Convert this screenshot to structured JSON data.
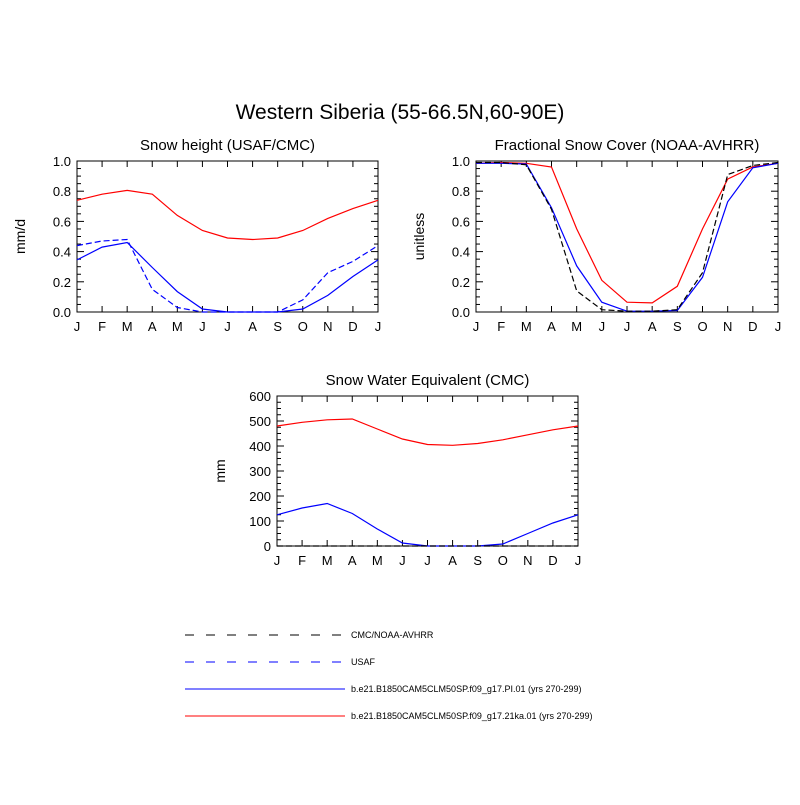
{
  "main_title": "Western Siberia (55-66.5N,60-90E)",
  "colors": {
    "blue": "#0000ff",
    "red": "#ff0000",
    "black": "#000000"
  },
  "legend": [
    {
      "label": "CMC/NOAA-AVHRR",
      "color": "#000000",
      "dash": true
    },
    {
      "label": "USAF",
      "color": "#0000ff",
      "dash": true
    },
    {
      "label": "b.e21.B1850CAM5CLM50SP.f09_g17.PI.01 (yrs 270-299)",
      "color": "#0000ff",
      "dash": false
    },
    {
      "label": "b.e21.B1850CAM5CLM50SP.f09_g17.21ka.01 (yrs 270-299)",
      "color": "#ff0000",
      "dash": false
    }
  ],
  "chart_data": [
    {
      "type": "line",
      "title": "Snow height (USAF/CMC)",
      "ylabel": "mm/d",
      "xlabel": "",
      "categories": [
        "J",
        "F",
        "M",
        "A",
        "M",
        "J",
        "J",
        "A",
        "S",
        "O",
        "N",
        "D",
        "J"
      ],
      "ylim": [
        0,
        1.0
      ],
      "yticks": [
        "0.0",
        "0.2",
        "0.4",
        "0.6",
        "0.8",
        "1.0"
      ],
      "series": [
        {
          "name": "b.e21.B1850CAM5CLM50SP.f09_g17.21ka.01 (yrs 270-299)",
          "color": "#ff0000",
          "dash": false,
          "values": [
            0.74,
            0.78,
            0.805,
            0.78,
            0.64,
            0.54,
            0.49,
            0.48,
            0.49,
            0.54,
            0.62,
            0.685,
            0.74
          ]
        },
        {
          "name": "b.e21.B1850CAM5CLM50SP.f09_g17.PI.01 (yrs 270-299)",
          "color": "#0000ff",
          "dash": false,
          "values": [
            0.345,
            0.43,
            0.46,
            0.295,
            0.135,
            0.02,
            0.0,
            0.0,
            0.0,
            0.02,
            0.11,
            0.235,
            0.345
          ]
        },
        {
          "name": "USAF",
          "color": "#0000ff",
          "dash": true,
          "values": [
            0.44,
            0.47,
            0.48,
            0.15,
            0.03,
            0.0,
            0.0,
            0.0,
            0.0,
            0.08,
            0.26,
            0.335,
            0.44
          ]
        }
      ]
    },
    {
      "type": "line",
      "title": "Fractional Snow Cover (NOAA-AVHRR)",
      "ylabel": "unitless",
      "xlabel": "",
      "categories": [
        "J",
        "F",
        "M",
        "A",
        "M",
        "J",
        "J",
        "A",
        "S",
        "O",
        "N",
        "D",
        "J"
      ],
      "ylim": [
        0,
        1.0
      ],
      "yticks": [
        "0.0",
        "0.2",
        "0.4",
        "0.6",
        "0.8",
        "1.0"
      ],
      "series": [
        {
          "name": "b.e21.B1850CAM5CLM50SP.f09_g17.21ka.01 (yrs 270-299)",
          "color": "#ff0000",
          "dash": false,
          "values": [
            0.985,
            0.99,
            0.985,
            0.96,
            0.55,
            0.21,
            0.065,
            0.06,
            0.17,
            0.55,
            0.88,
            0.96,
            0.985
          ]
        },
        {
          "name": "b.e21.B1850CAM5CLM50SP.f09_g17.PI.01 (yrs 270-299)",
          "color": "#0000ff",
          "dash": false,
          "values": [
            0.985,
            0.985,
            0.98,
            0.69,
            0.305,
            0.065,
            0.005,
            0.005,
            0.01,
            0.23,
            0.73,
            0.955,
            0.985
          ]
        },
        {
          "name": "CMC/NOAA-AVHRR",
          "color": "#000000",
          "dash": true,
          "values": [
            0.99,
            0.99,
            0.975,
            0.68,
            0.14,
            0.015,
            0.005,
            0.005,
            0.015,
            0.26,
            0.91,
            0.97,
            0.99
          ]
        }
      ]
    },
    {
      "type": "line",
      "title": "Snow Water Equivalent (CMC)",
      "ylabel": "mm",
      "xlabel": "",
      "categories": [
        "J",
        "F",
        "M",
        "A",
        "M",
        "J",
        "J",
        "A",
        "S",
        "O",
        "N",
        "D",
        "J"
      ],
      "ylim": [
        0,
        600
      ],
      "yticks": [
        "0",
        "100",
        "200",
        "300",
        "400",
        "500",
        "600"
      ],
      "series": [
        {
          "name": "b.e21.B1850CAM5CLM50SP.f09_g17.21ka.01 (yrs 270-299)",
          "color": "#ff0000",
          "dash": false,
          "values": [
            480,
            495,
            505,
            508,
            468,
            428,
            406,
            403,
            410,
            425,
            445,
            465,
            480
          ]
        },
        {
          "name": "b.e21.B1850CAM5CLM50SP.f09_g17.PI.01 (yrs 270-299)",
          "color": "#0000ff",
          "dash": false,
          "values": [
            125,
            152,
            170,
            130,
            68,
            12,
            0,
            0,
            0,
            8,
            50,
            92,
            125
          ]
        },
        {
          "name": "CMC/NOAA-AVHRR",
          "color": "#000000",
          "dash": true,
          "values": [
            0,
            0,
            0,
            0,
            0,
            0,
            0,
            0,
            0,
            0,
            0,
            0,
            0
          ]
        }
      ]
    }
  ]
}
